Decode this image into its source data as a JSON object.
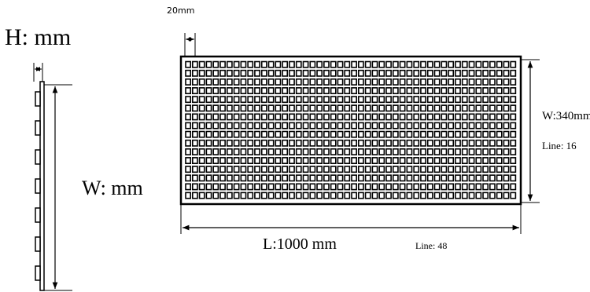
{
  "side_view": {
    "height_label": "H:  mm",
    "width_label": "W:  mm"
  },
  "front_view": {
    "cell_pitch_label": "20mm",
    "width_label": "W:340mm",
    "width_lines_label": "Line: 16",
    "length_label": "L:1000  mm",
    "length_lines_label": "Line: 48",
    "grid_columns": 48,
    "grid_rows": 16
  }
}
